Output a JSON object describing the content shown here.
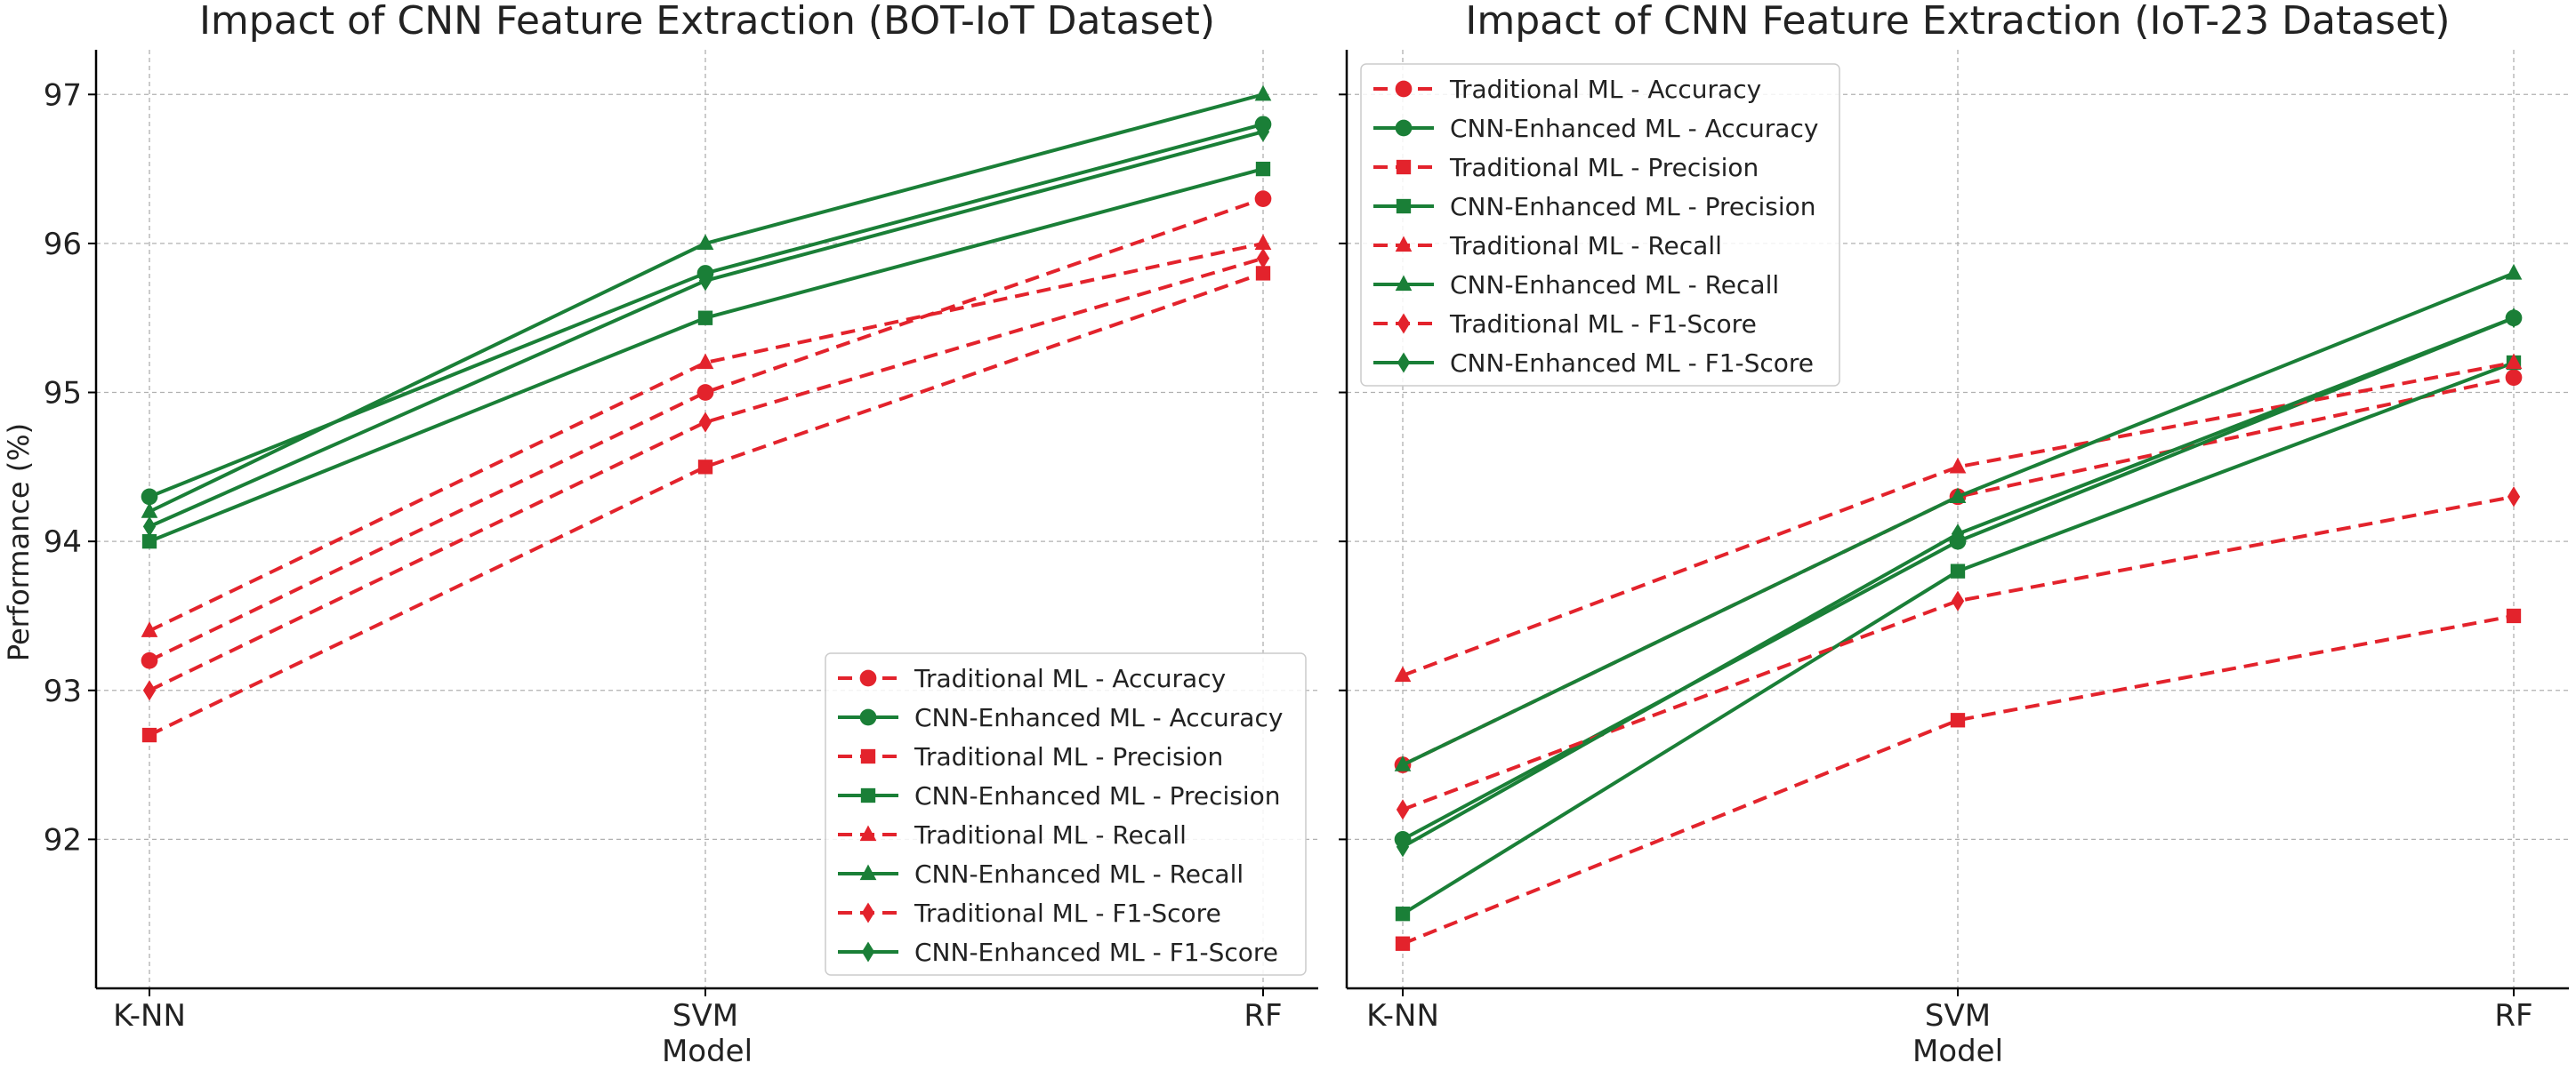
{
  "colors": {
    "traditional": "#e3232c",
    "cnn": "#1a7f37",
    "grid": "#b0b0b0",
    "axis": "#000000",
    "text": "#222222"
  },
  "chart_data": [
    {
      "type": "line",
      "title": "Impact of CNN Feature Extraction (BOT-IoT Dataset)",
      "xlabel": "Model",
      "ylabel": "Performance (%)",
      "categories": [
        "K-NN",
        "SVM",
        "RF"
      ],
      "ylim": [
        91.0,
        97.3
      ],
      "yticks": [
        92,
        93,
        94,
        95,
        96,
        97
      ],
      "grid": true,
      "legend_position": "lower right",
      "series": [
        {
          "name": "Traditional ML - Accuracy",
          "group": "traditional",
          "marker": "circle",
          "values": [
            93.2,
            95.0,
            96.3
          ]
        },
        {
          "name": "CNN-Enhanced ML - Accuracy",
          "group": "cnn",
          "marker": "circle",
          "values": [
            94.3,
            95.8,
            96.8
          ]
        },
        {
          "name": "Traditional ML - Precision",
          "group": "traditional",
          "marker": "square",
          "values": [
            92.7,
            94.5,
            95.8
          ]
        },
        {
          "name": "CNN-Enhanced ML - Precision",
          "group": "cnn",
          "marker": "square",
          "values": [
            94.0,
            95.5,
            96.5
          ]
        },
        {
          "name": "Traditional ML - Recall",
          "group": "traditional",
          "marker": "triangle",
          "values": [
            93.4,
            95.2,
            96.0
          ]
        },
        {
          "name": "CNN-Enhanced ML - Recall",
          "group": "cnn",
          "marker": "triangle",
          "values": [
            94.2,
            96.0,
            97.0
          ]
        },
        {
          "name": "Traditional ML - F1-Score",
          "group": "traditional",
          "marker": "diamond",
          "values": [
            93.0,
            94.8,
            95.9
          ]
        },
        {
          "name": "CNN-Enhanced ML - F1-Score",
          "group": "cnn",
          "marker": "diamond",
          "values": [
            94.1,
            95.75,
            96.75
          ]
        }
      ]
    },
    {
      "type": "line",
      "title": "Impact of CNN Feature Extraction (IoT-23 Dataset)",
      "xlabel": "Model",
      "ylabel": "",
      "categories": [
        "K-NN",
        "SVM",
        "RF"
      ],
      "ylim": [
        91.0,
        97.3
      ],
      "yticks": [
        92,
        93,
        94,
        95,
        96,
        97
      ],
      "grid": true,
      "legend_position": "upper left",
      "series": [
        {
          "name": "Traditional ML - Accuracy",
          "group": "traditional",
          "marker": "circle",
          "values": [
            92.5,
            94.3,
            95.1
          ]
        },
        {
          "name": "CNN-Enhanced ML - Accuracy",
          "group": "cnn",
          "marker": "circle",
          "values": [
            92.0,
            94.0,
            95.5
          ]
        },
        {
          "name": "Traditional ML - Precision",
          "group": "traditional",
          "marker": "square",
          "values": [
            91.3,
            92.8,
            93.5
          ]
        },
        {
          "name": "CNN-Enhanced ML - Precision",
          "group": "cnn",
          "marker": "square",
          "values": [
            91.5,
            93.8,
            95.2
          ]
        },
        {
          "name": "Traditional ML - Recall",
          "group": "traditional",
          "marker": "triangle",
          "values": [
            93.1,
            94.5,
            95.2
          ]
        },
        {
          "name": "CNN-Enhanced ML - Recall",
          "group": "cnn",
          "marker": "triangle",
          "values": [
            92.5,
            94.3,
            95.8
          ]
        },
        {
          "name": "Traditional ML - F1-Score",
          "group": "traditional",
          "marker": "diamond",
          "values": [
            92.2,
            93.6,
            94.3
          ]
        },
        {
          "name": "CNN-Enhanced ML - F1-Score",
          "group": "cnn",
          "marker": "diamond",
          "values": [
            91.95,
            94.05,
            95.5
          ]
        }
      ]
    }
  ]
}
